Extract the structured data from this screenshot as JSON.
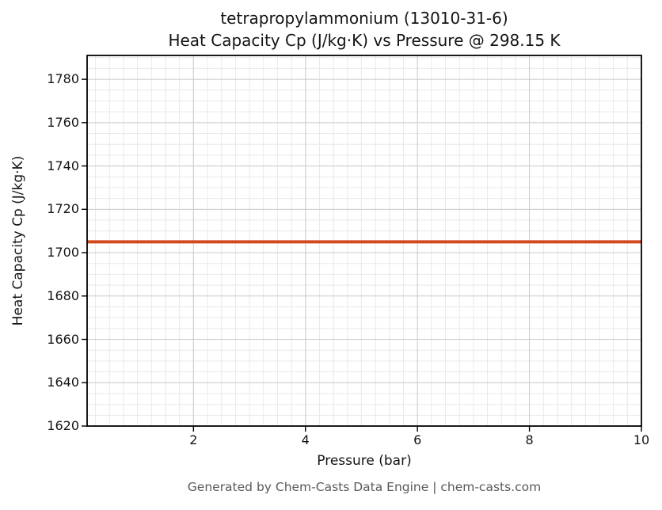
{
  "page": {
    "title_line1": "tetrapropylammonium (13010-31-6)",
    "title_line2": "Heat Capacity Cp (J/kg·K) vs Pressure @ 298.15 K",
    "footer": "Generated by Chem-Casts Data Engine | chem-casts.com"
  },
  "chart_data": {
    "type": "line",
    "title": "tetrapropylammonium (13010-31-6) — Heat Capacity Cp (J/kg·K) vs Pressure @ 298.15 K",
    "xlabel": "Pressure (bar)",
    "ylabel": "Heat Capacity Cp (J/kg·K)",
    "xlim": [
      0.1,
      10
    ],
    "ylim": [
      1620,
      1791
    ],
    "xticks": [
      2,
      4,
      6,
      8,
      10
    ],
    "yticks": [
      1620,
      1640,
      1660,
      1680,
      1700,
      1720,
      1740,
      1760,
      1780
    ],
    "x_minor_step": 0.25,
    "y_minor_step": 5,
    "grid": true,
    "legend_position": "none",
    "series": [
      {
        "name": "Cp",
        "color": "#d1491f",
        "x": [
          0.1,
          10
        ],
        "y": [
          1705,
          1705
        ]
      }
    ],
    "cp_constant_value": 1705,
    "temperature_K": "298.15",
    "footer": "Generated by Chem-Casts Data Engine | chem-casts.com"
  }
}
